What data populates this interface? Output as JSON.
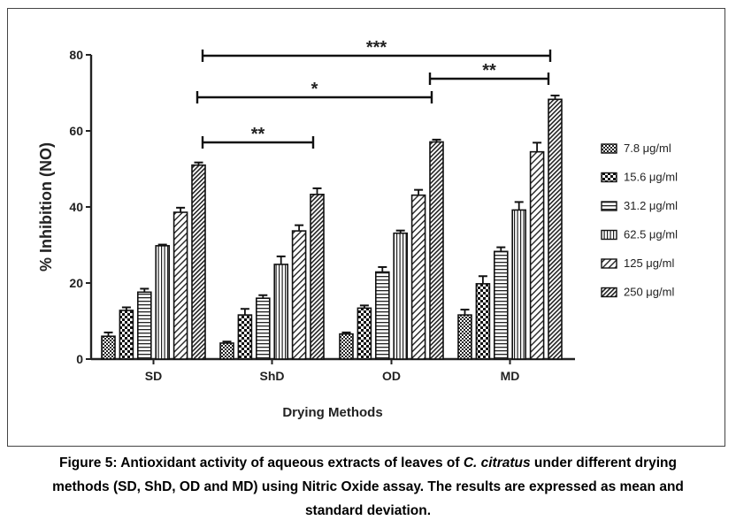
{
  "chart_data": {
    "type": "bar",
    "ylabel": "% Inhibition (NO)",
    "xlabel": "Drying Methods",
    "ylim": [
      0,
      80
    ],
    "yticks": [
      "0",
      "20",
      "40",
      "60",
      "80"
    ],
    "categories": [
      "SD",
      "ShD",
      "OD",
      "MD"
    ],
    "series": [
      {
        "name": "7.8 μg/ml",
        "pattern": "checker-small",
        "values": [
          6.0,
          4.2,
          6.6,
          11.6
        ],
        "errors": [
          1.0,
          0.4,
          0.4,
          1.4
        ]
      },
      {
        "name": "15.6 μg/ml",
        "pattern": "checker-large",
        "values": [
          12.8,
          11.6,
          13.4,
          19.8
        ],
        "errors": [
          0.8,
          1.6,
          0.7,
          2.0
        ]
      },
      {
        "name": "31.2 μg/ml",
        "pattern": "hlines",
        "values": [
          17.6,
          16.0,
          22.9,
          28.3
        ],
        "errors": [
          0.9,
          0.8,
          1.3,
          1.1
        ]
      },
      {
        "name": "62.5 μg/ml",
        "pattern": "vlines",
        "values": [
          29.8,
          24.9,
          33.1,
          39.2
        ],
        "errors": [
          0.3,
          2.1,
          0.7,
          2.1
        ]
      },
      {
        "name": "125 μg/ml",
        "pattern": "diag-light",
        "values": [
          38.6,
          33.7,
          43.1,
          54.5
        ],
        "errors": [
          1.2,
          1.5,
          1.4,
          2.4
        ]
      },
      {
        "name": "250 μg/ml",
        "pattern": "diag-dense",
        "values": [
          51.0,
          43.3,
          57.1,
          68.3
        ],
        "errors": [
          0.7,
          1.6,
          0.6,
          1.0
        ]
      }
    ],
    "significance": [
      {
        "label": "***",
        "from": "SD",
        "to": "MD"
      },
      {
        "label": "*",
        "from": "SD",
        "to": "OD"
      },
      {
        "label": "**",
        "from": "SD",
        "to": "ShD"
      },
      {
        "label": "**",
        "from": "OD",
        "to": "MD"
      }
    ]
  },
  "caption": {
    "before_italic": "Figure 5: Antioxidant activity of aqueous extracts of leaves of ",
    "italic": "C. citratus",
    "line1_after": " under different drying",
    "line2": "methods (SD, ShD, OD and MD) using Nitric Oxide assay. The results are expressed as mean and",
    "line3": "standard deviation."
  }
}
